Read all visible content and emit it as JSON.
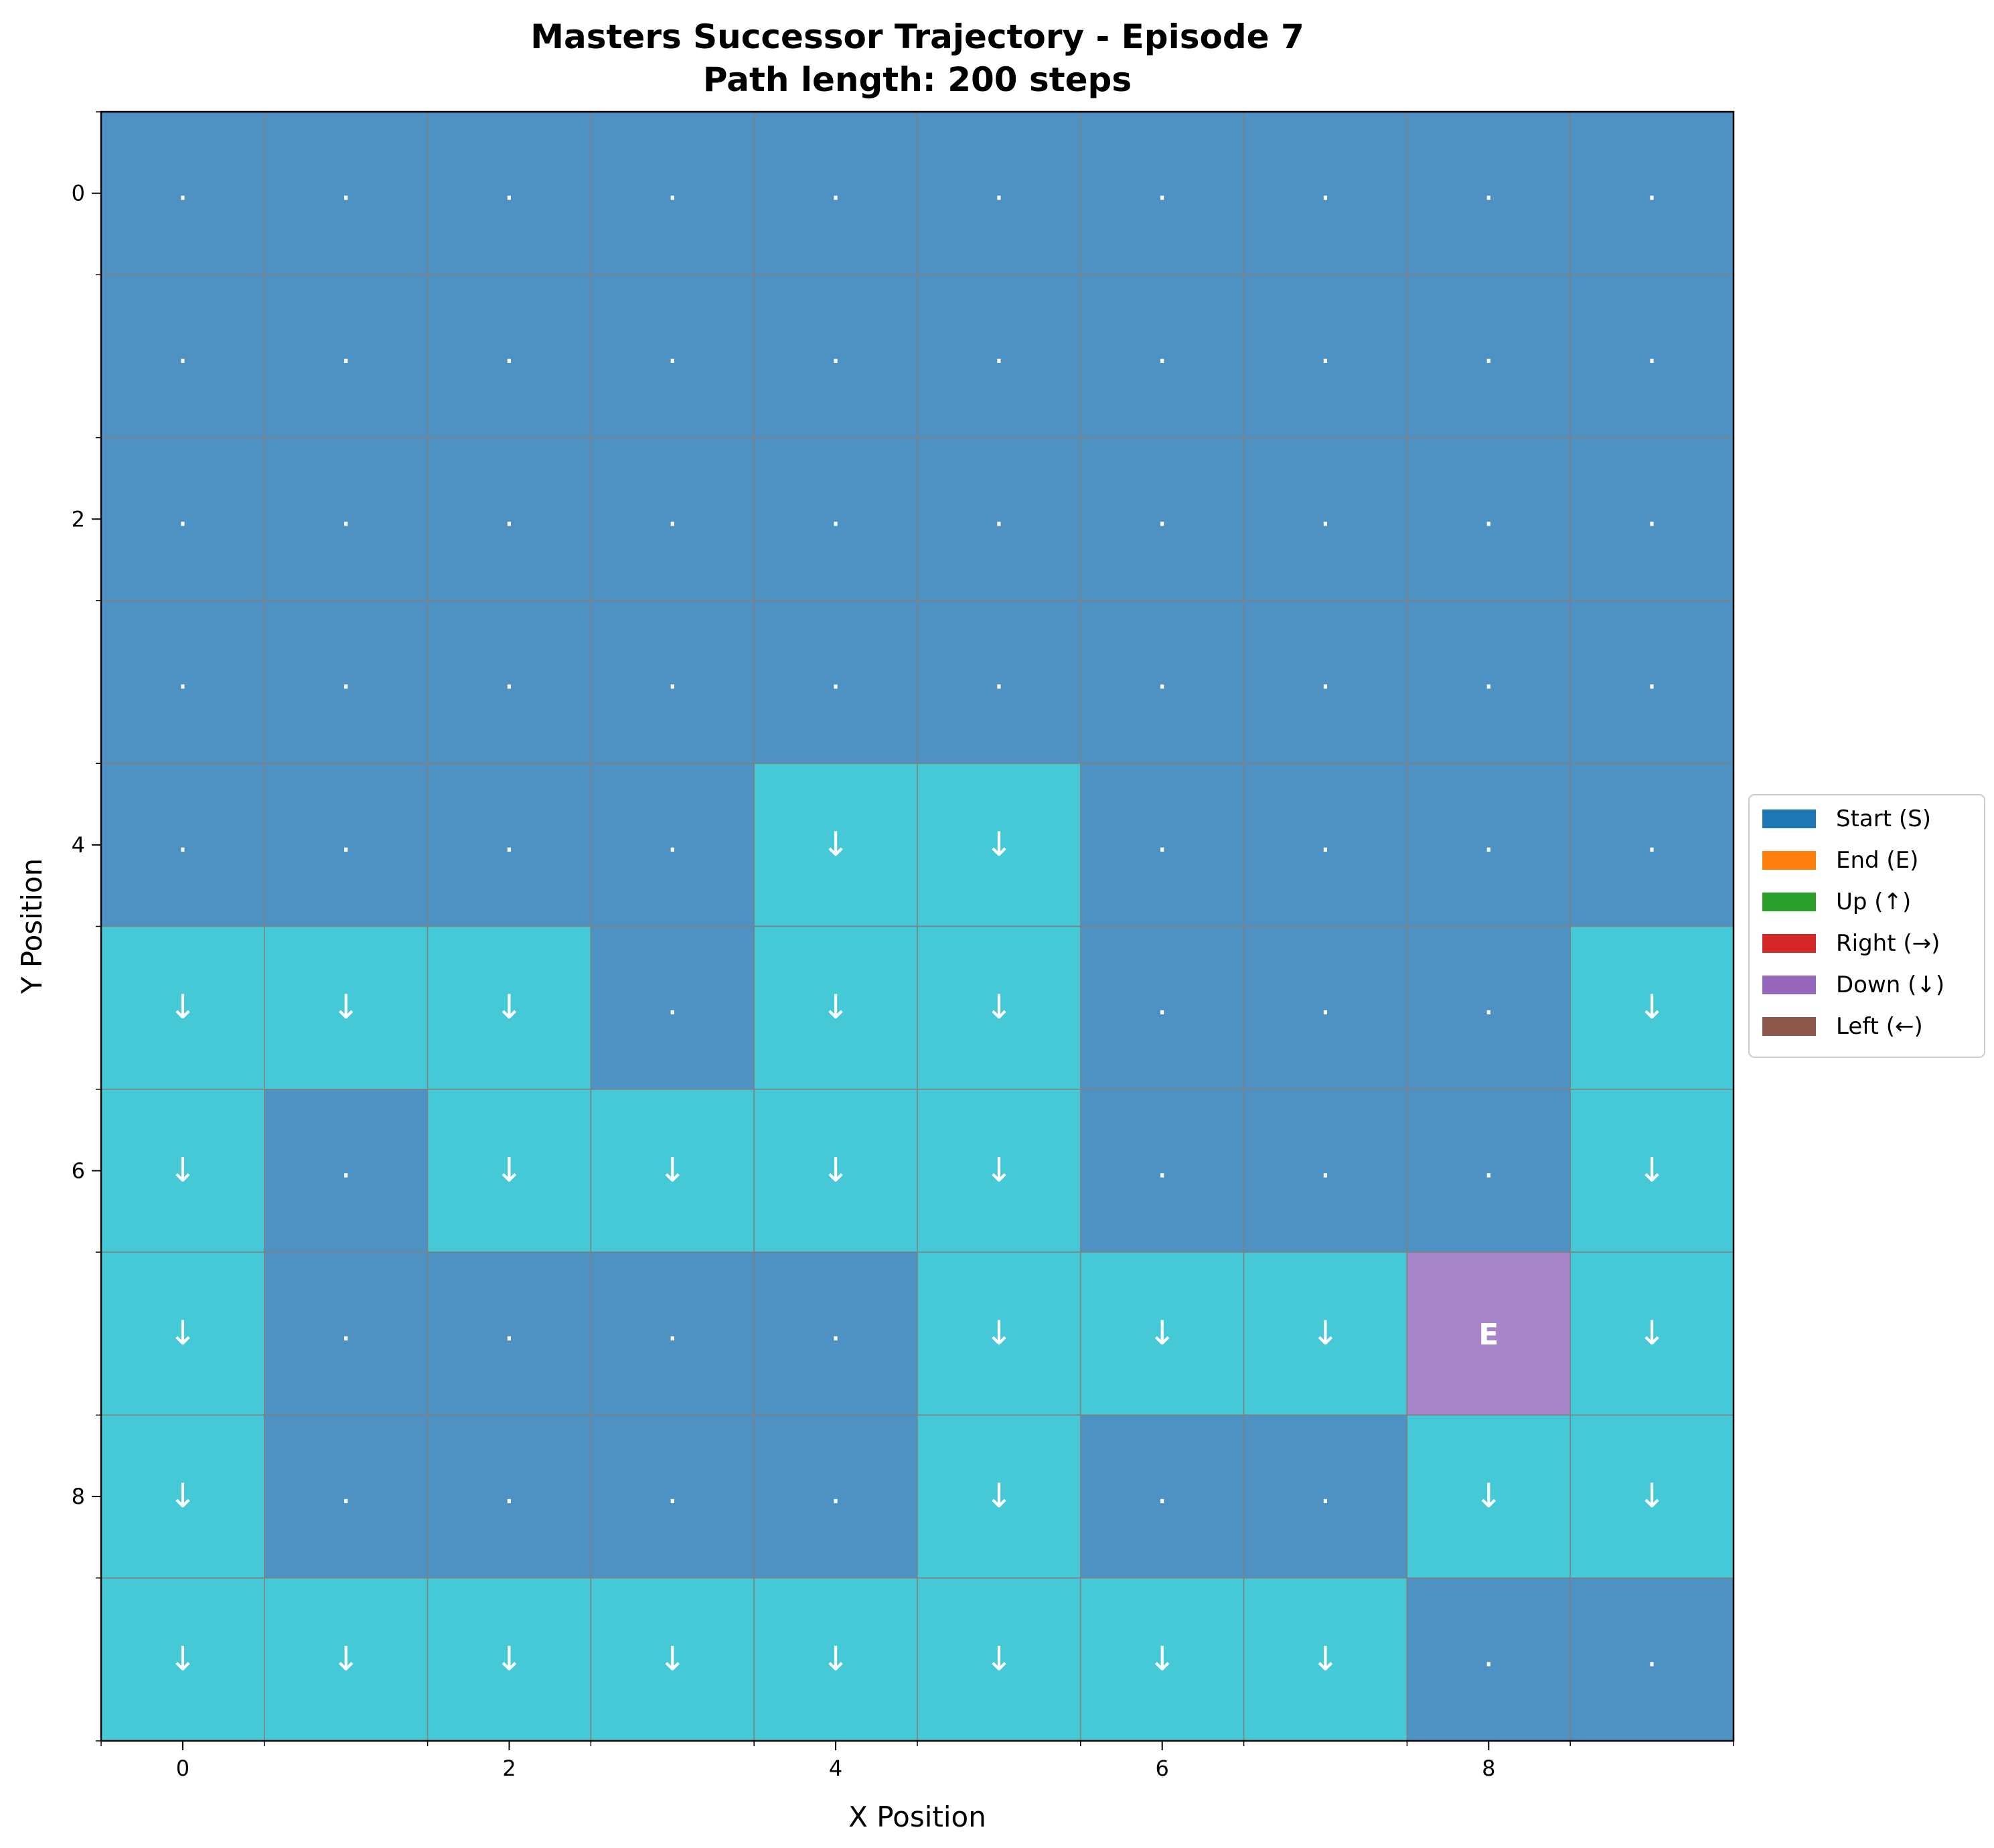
{
  "chart_data": {
    "type": "heatmap",
    "title": "Masters Successor Trajectory - Episode 7",
    "subtitle": "Path length: 200 steps",
    "xlabel": "X Position",
    "ylabel": "Y Position",
    "xlim": [
      -0.5,
      9.5
    ],
    "ylim": [
      9.5,
      -0.5
    ],
    "x_ticks": [
      "0",
      "2",
      "4",
      "6",
      "8"
    ],
    "y_ticks": [
      "0",
      "2",
      "4",
      "6",
      "8"
    ],
    "grid": true,
    "colors": {
      "unvisited": "#4e92c3",
      "visited": "#45c9d6",
      "end": "#a884c8",
      "grid_line": "#808080"
    },
    "grid_cells": [
      [
        ".",
        ".",
        ".",
        ".",
        ".",
        ".",
        ".",
        ".",
        ".",
        "."
      ],
      [
        ".",
        ".",
        ".",
        ".",
        ".",
        ".",
        ".",
        ".",
        ".",
        "."
      ],
      [
        ".",
        ".",
        ".",
        ".",
        ".",
        ".",
        ".",
        ".",
        ".",
        "."
      ],
      [
        ".",
        ".",
        ".",
        ".",
        ".",
        ".",
        ".",
        ".",
        ".",
        "."
      ],
      [
        ".",
        ".",
        ".",
        ".",
        "↓",
        "↓",
        ".",
        ".",
        ".",
        "."
      ],
      [
        "↓",
        "↓",
        "↓",
        ".",
        "↓",
        "↓",
        ".",
        ".",
        ".",
        "↓"
      ],
      [
        "↓",
        ".",
        "↓",
        "↓",
        "↓",
        "↓",
        ".",
        ".",
        ".",
        "↓"
      ],
      [
        "↓",
        ".",
        ".",
        ".",
        ".",
        "↓",
        "↓",
        "↓",
        "E",
        "↓"
      ],
      [
        "↓",
        ".",
        ".",
        ".",
        ".",
        "↓",
        ".",
        ".",
        "↓",
        "↓"
      ],
      [
        "↓",
        "↓",
        "↓",
        "↓",
        "↓",
        "↓",
        "↓",
        "↓",
        ".",
        "."
      ]
    ],
    "legend": {
      "placement": "right",
      "entries": [
        {
          "label": "Start (S)",
          "color": "#1f77b4"
        },
        {
          "label": "End (E)",
          "color": "#ff7f0e"
        },
        {
          "label": "Up (↑)",
          "color": "#2ca02c"
        },
        {
          "label": "Right (→)",
          "color": "#d62728"
        },
        {
          "label": "Down (↓)",
          "color": "#9467bd"
        },
        {
          "label": "Left (←)",
          "color": "#8c564b"
        }
      ]
    }
  }
}
